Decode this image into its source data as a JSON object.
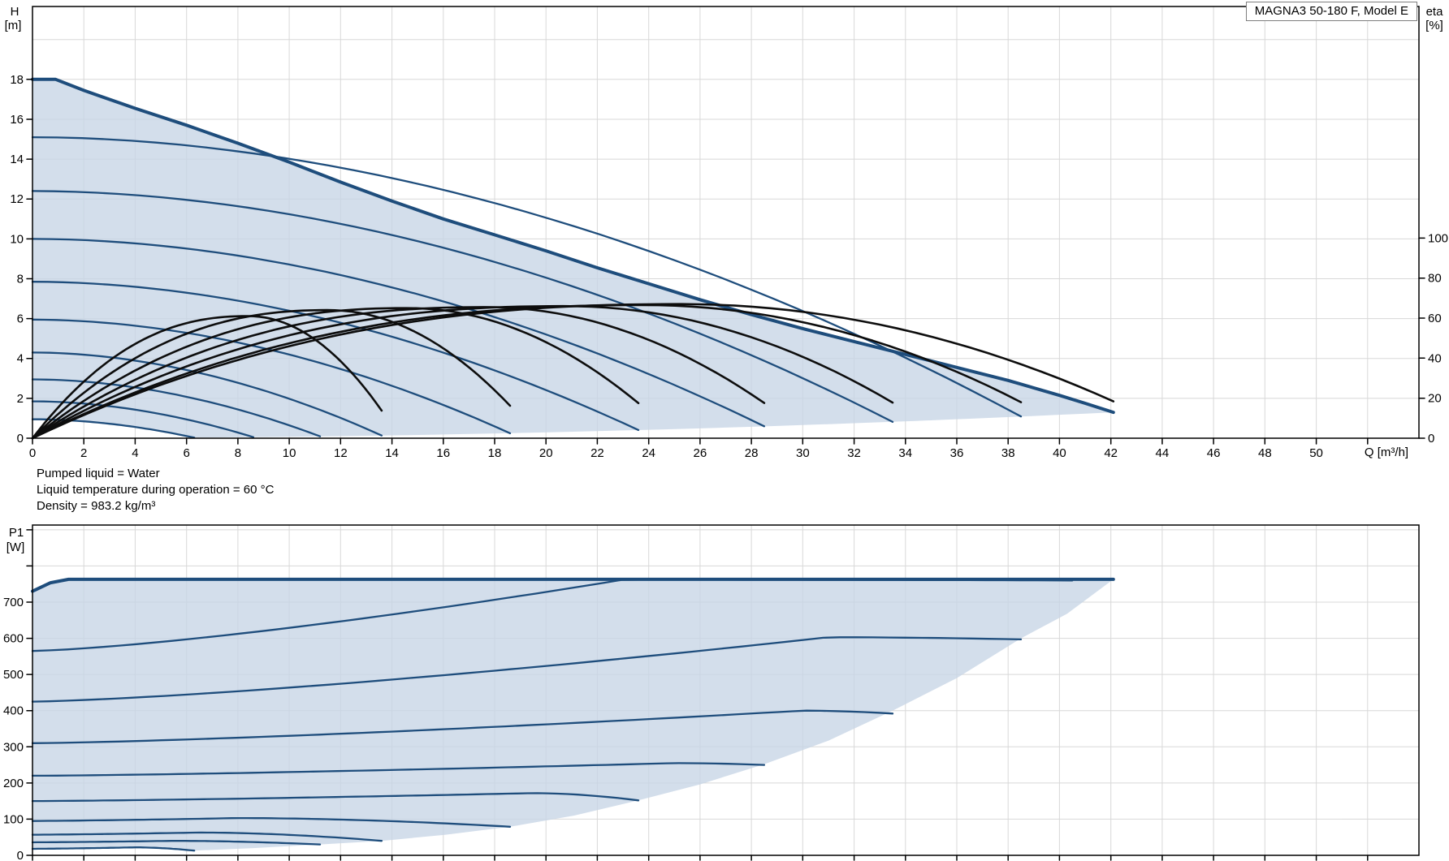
{
  "title": "MAGNA3 50-180 F, Model E",
  "info_lines": [
    "Pumped liquid = Water",
    "Liquid temperature during operation = 60 °C",
    "Density = 983.2 kg/m³"
  ],
  "colors": {
    "curve_blue": "#1e4d7c",
    "fill_blue": "rgba(199,213,230,0.78)",
    "eta_black": "#0d0d0d",
    "grid": "#d8d8d8",
    "axis": "#000000",
    "title_border": "#7f7f7f"
  },
  "chart_data": [
    {
      "id": "head-flow-chart",
      "type": "line",
      "x_axis": {
        "label": "Q [m³/h]",
        "min": 0,
        "max": 54,
        "tick_step": 2,
        "tick_labels": [
          0,
          2,
          4,
          6,
          8,
          10,
          12,
          14,
          16,
          18,
          20,
          22,
          24,
          26,
          28,
          30,
          32,
          34,
          36,
          38,
          40,
          42,
          44,
          46,
          48,
          50
        ]
      },
      "y_axis_left": {
        "name": "H",
        "unit": "[m]",
        "min": 0,
        "max": 21.66,
        "tick_step": 2,
        "tick_labels": [
          0,
          2,
          4,
          6,
          8,
          10,
          12,
          14,
          16,
          18
        ]
      },
      "y_axis_right": {
        "name": "eta",
        "unit": "[%]",
        "min": 0,
        "max": 100,
        "tick_labels": [
          0,
          20,
          40,
          60,
          80,
          100
        ]
      },
      "grid": true,
      "legend_position": "none",
      "max_speed_curve_points": [
        [
          0,
          18
        ],
        [
          0.9,
          18
        ],
        [
          2,
          17.45
        ],
        [
          4,
          16.55
        ],
        [
          6,
          15.7
        ],
        [
          8,
          14.8
        ],
        [
          10,
          13.85
        ],
        [
          12,
          12.85
        ],
        [
          14,
          11.9
        ],
        [
          16,
          11.0
        ],
        [
          18,
          10.2
        ],
        [
          20,
          9.4
        ],
        [
          22,
          8.55
        ],
        [
          24,
          7.75
        ],
        [
          26,
          6.95
        ],
        [
          28,
          6.2
        ],
        [
          30,
          5.5
        ],
        [
          32,
          4.85
        ],
        [
          34,
          4.2
        ],
        [
          36,
          3.55
        ],
        [
          38,
          2.9
        ],
        [
          40,
          2.15
        ],
        [
          41,
          1.75
        ],
        [
          42.1,
          1.3
        ]
      ],
      "speed_curves": [
        {
          "h0": 15.1,
          "q_end": 38.5,
          "h_end": 1.09
        },
        {
          "h0": 12.4,
          "q_end": 33.5,
          "h_end": 0.82
        },
        {
          "h0": 10.0,
          "q_end": 28.5,
          "h_end": 0.6
        },
        {
          "h0": 7.85,
          "q_end": 23.6,
          "h_end": 0.41
        },
        {
          "h0": 5.95,
          "q_end": 18.6,
          "h_end": 0.25
        },
        {
          "h0": 4.3,
          "q_end": 13.6,
          "h_end": 0.136
        },
        {
          "h0": 2.95,
          "q_end": 11.2,
          "h_end": 0.092
        },
        {
          "h0": 1.85,
          "q_end": 8.6,
          "h_end": 0.054
        },
        {
          "h0": 0.95,
          "q_end": 6.3,
          "h_end": 0.029
        }
      ],
      "eta_curves": [
        {
          "q_end": 42.1,
          "eta_peak": 67.0,
          "eta_end": 18.4,
          "peak_frac": 0.6
        },
        {
          "q_end": 38.5,
          "eta_peak": 66.5,
          "eta_end": 18.0,
          "peak_frac": 0.62
        },
        {
          "q_end": 33.5,
          "eta_peak": 66.0,
          "eta_end": 17.8,
          "peak_frac": 0.62
        },
        {
          "q_end": 28.5,
          "eta_peak": 65.5,
          "eta_end": 17.6,
          "peak_frac": 0.62
        },
        {
          "q_end": 23.6,
          "eta_peak": 65.0,
          "eta_end": 17.5,
          "peak_frac": 0.62
        },
        {
          "q_end": 18.6,
          "eta_peak": 64.0,
          "eta_end": 16.2,
          "peak_frac": 0.62
        },
        {
          "q_end": 13.6,
          "eta_peak": 61.0,
          "eta_end": 13.8,
          "peak_frac": 0.62
        }
      ]
    },
    {
      "id": "power-flow-chart",
      "type": "line",
      "x_axis": {
        "label": "",
        "min": 0,
        "max": 54,
        "tick_step": 2,
        "tick_labels": []
      },
      "y_axis_left": {
        "name": "P1",
        "unit": "[W]",
        "min": 0,
        "max": 913,
        "tick_step": 100,
        "tick_labels": [
          0,
          100,
          200,
          300,
          400,
          500,
          600,
          700
        ]
      },
      "grid": true,
      "power_curves": [
        {
          "p0": 730,
          "p_peak": 763,
          "q_peak": 0.9,
          "q_end": 42.1,
          "p_end": 763
        },
        {
          "p0": 565,
          "p_peak": 762,
          "q_peak": 23.0,
          "q_end": 40.5,
          "p_end": 760
        },
        {
          "p0": 425,
          "p_peak": 603,
          "q_peak": 31.0,
          "q_end": 38.5,
          "p_end": 597
        },
        {
          "p0": 310,
          "p_peak": 400,
          "q_peak": 30.0,
          "q_end": 33.5,
          "p_end": 392
        },
        {
          "p0": 220,
          "p_peak": 255,
          "q_peak": 25.0,
          "q_end": 28.5,
          "p_end": 250
        },
        {
          "p0": 150,
          "p_peak": 172,
          "q_peak": 19.5,
          "q_end": 23.6,
          "p_end": 152
        },
        {
          "p0": 95,
          "p_peak": 103,
          "q_peak": 8.0,
          "q_end": 18.6,
          "p_end": 79
        },
        {
          "p0": 57,
          "p_peak": 63,
          "q_peak": 6.5,
          "q_end": 13.6,
          "p_end": 40
        },
        {
          "p0": 36,
          "p_peak": 40,
          "q_peak": 5.5,
          "q_end": 11.2,
          "p_end": 30
        },
        {
          "p0": 18,
          "p_peak": 22,
          "q_peak": 4.0,
          "q_end": 6.3,
          "p_end": 13
        }
      ],
      "fill_boundary": [
        [
          42.1,
          763
        ],
        [
          40.3,
          668
        ],
        [
          38.5,
          600
        ],
        [
          36,
          490
        ],
        [
          33.5,
          400
        ],
        [
          31,
          317
        ],
        [
          28.5,
          252
        ],
        [
          26,
          196
        ],
        [
          23.6,
          152
        ],
        [
          21.1,
          110
        ],
        [
          18.6,
          79
        ],
        [
          16.1,
          57
        ],
        [
          13.6,
          40
        ],
        [
          11.2,
          30
        ],
        [
          8.6,
          20
        ],
        [
          6.3,
          13
        ]
      ]
    }
  ]
}
